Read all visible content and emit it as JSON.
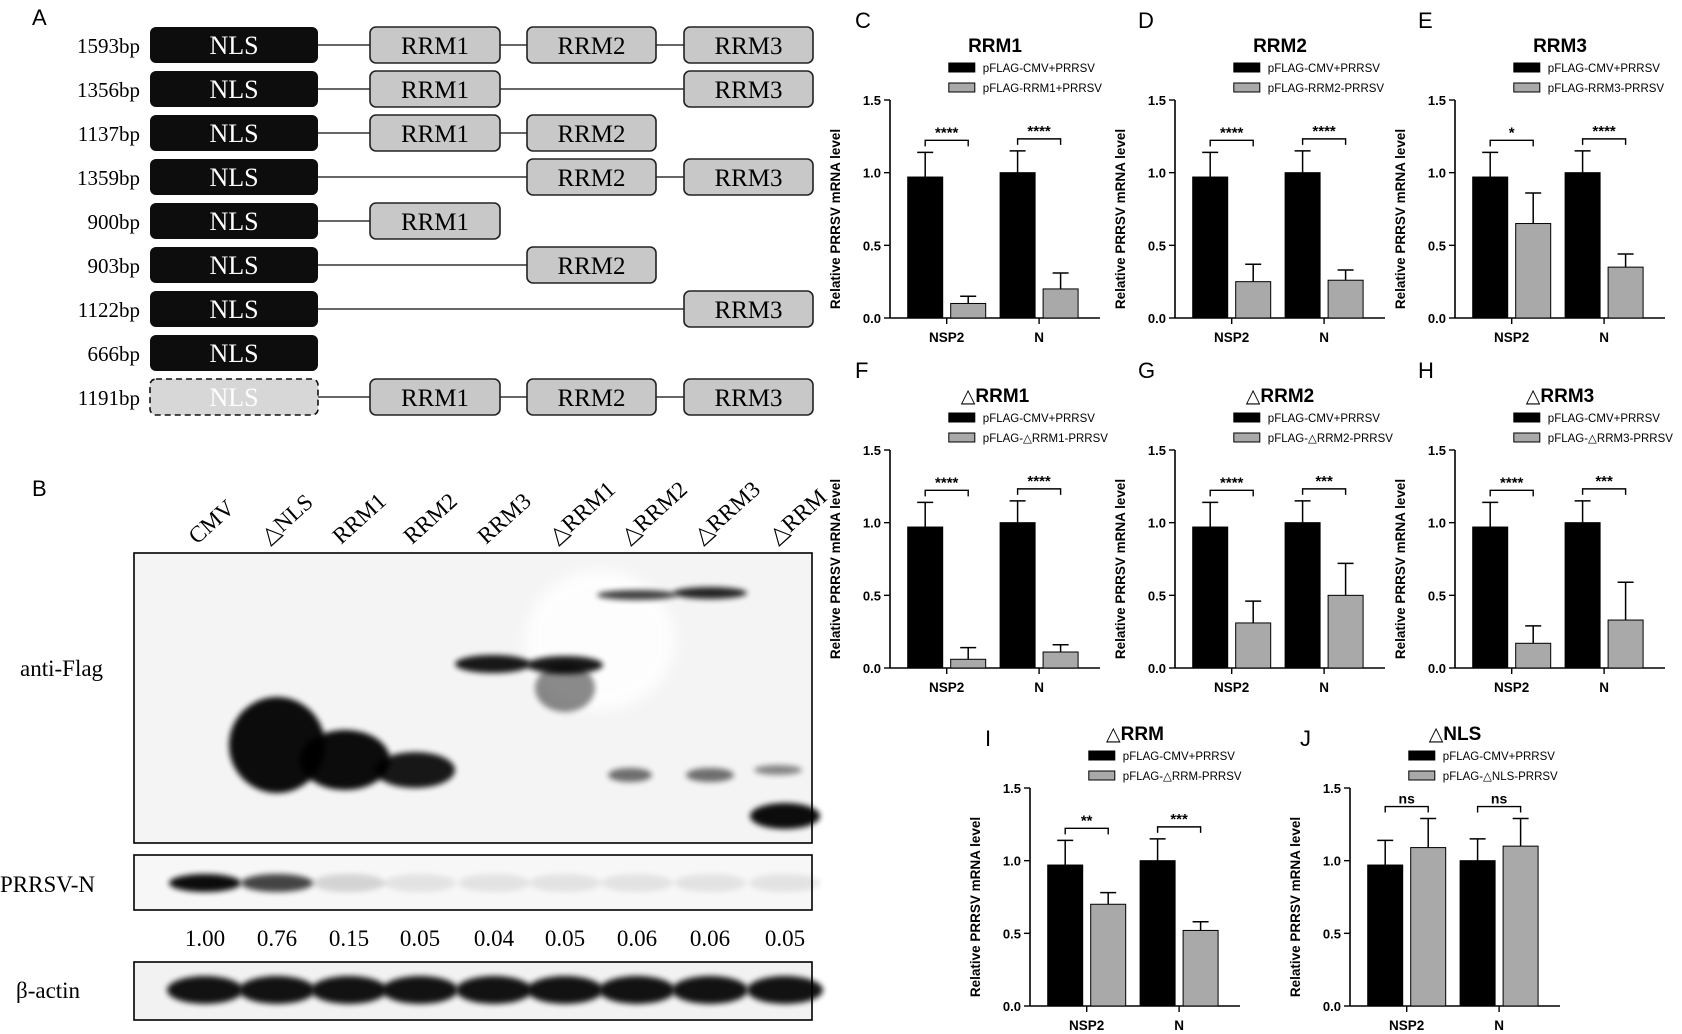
{
  "panels": {
    "A": {
      "letter": "A",
      "constructs": [
        {
          "length": "1593bp",
          "nls": "NLS",
          "nls_deleted": false,
          "domains": [
            "RRM1",
            "RRM2",
            "RRM3"
          ]
        },
        {
          "length": "1356bp",
          "nls": "NLS",
          "nls_deleted": false,
          "domains": [
            "RRM1",
            "RRM3"
          ]
        },
        {
          "length": "1137bp",
          "nls": "NLS",
          "nls_deleted": false,
          "domains": [
            "RRM1",
            "RRM2"
          ]
        },
        {
          "length": "1359bp",
          "nls": "NLS",
          "nls_deleted": false,
          "domains": [
            "RRM2",
            "RRM3"
          ]
        },
        {
          "length": "900bp",
          "nls": "NLS",
          "nls_deleted": false,
          "domains": [
            "RRM1"
          ]
        },
        {
          "length": "903bp",
          "nls": "NLS",
          "nls_deleted": false,
          "domains": [
            "RRM2"
          ]
        },
        {
          "length": "1122bp",
          "nls": "NLS",
          "nls_deleted": false,
          "domains": [
            "RRM3"
          ]
        },
        {
          "length": "666bp",
          "nls": "NLS",
          "nls_deleted": false,
          "domains": []
        },
        {
          "length": "1191bp",
          "nls": "NLS",
          "nls_deleted": true,
          "domains": [
            "RRM1",
            "RRM2",
            "RRM3"
          ]
        }
      ]
    },
    "B": {
      "letter": "B",
      "lanes": [
        "CMV",
        "△NLS",
        "RRM1",
        "RRM2",
        "RRM3",
        "△RRM1",
        "△RRM2",
        "△RRM3",
        "△RRM"
      ],
      "blot_labels": [
        "anti-Flag",
        "PRRSV-N",
        "β-actin"
      ],
      "quantification": [
        "1.00",
        "0.76",
        "0.15",
        "0.05",
        "0.04",
        "0.05",
        "0.06",
        "0.06",
        "0.05"
      ],
      "n_intensity": [
        1.0,
        0.76,
        0.15,
        0.05,
        0.04,
        0.05,
        0.06,
        0.06,
        0.05
      ]
    }
  },
  "colors": {
    "control": "#000000",
    "treatment": "#a9a9a9",
    "domain_box": "#c8c8c8",
    "nls_box": "#0d0d0d"
  },
  "chart_data": [
    {
      "panel": "C",
      "type": "bar",
      "title": "RRM1",
      "ylabel": "Relative PRRSV mRNA level",
      "xlabel": "",
      "categories": [
        "NSP2",
        "N"
      ],
      "ylim": [
        0,
        1.5
      ],
      "yticks": [
        "0.0",
        "0.5",
        "1.0",
        "1.5"
      ],
      "series": [
        {
          "name": "pFLAG-CMV+PRRSV",
          "values": [
            0.97,
            1.0
          ],
          "errors": [
            0.17,
            0.15
          ]
        },
        {
          "name": "pFLAG-RRM1+PRRSV",
          "values": [
            0.1,
            0.2
          ],
          "errors": [
            0.05,
            0.11
          ]
        }
      ],
      "significance": [
        "****",
        "****"
      ],
      "legend": "top"
    },
    {
      "panel": "D",
      "type": "bar",
      "title": "RRM2",
      "ylabel": "Relative PRRSV mRNA level",
      "xlabel": "",
      "categories": [
        "NSP2",
        "N"
      ],
      "ylim": [
        0,
        1.5
      ],
      "yticks": [
        "0.0",
        "0.5",
        "1.0",
        "1.5"
      ],
      "series": [
        {
          "name": "pFLAG-CMV+PRRSV",
          "values": [
            0.97,
            1.0
          ],
          "errors": [
            0.17,
            0.15
          ]
        },
        {
          "name": "pFLAG-RRM2-PRRSV",
          "values": [
            0.25,
            0.26
          ],
          "errors": [
            0.12,
            0.07
          ]
        }
      ],
      "significance": [
        "****",
        "****"
      ],
      "legend": "top"
    },
    {
      "panel": "E",
      "type": "bar",
      "title": "RRM3",
      "ylabel": "Relative PRRSV mRNA level",
      "xlabel": "",
      "categories": [
        "NSP2",
        "N"
      ],
      "ylim": [
        0,
        1.5
      ],
      "yticks": [
        "0.0",
        "0.5",
        "1.0",
        "1.5"
      ],
      "series": [
        {
          "name": "pFLAG-CMV+PRRSV",
          "values": [
            0.97,
            1.0
          ],
          "errors": [
            0.17,
            0.15
          ]
        },
        {
          "name": "pFLAG-RRM3-PRRSV",
          "values": [
            0.65,
            0.35
          ],
          "errors": [
            0.21,
            0.09
          ]
        }
      ],
      "significance": [
        "*",
        "****"
      ],
      "legend": "top"
    },
    {
      "panel": "F",
      "type": "bar",
      "title": "△RRM1",
      "ylabel": "Relative PRRSV mRNA level",
      "xlabel": "",
      "categories": [
        "NSP2",
        "N"
      ],
      "ylim": [
        0,
        1.5
      ],
      "yticks": [
        "0.0",
        "0.5",
        "1.0",
        "1.5"
      ],
      "series": [
        {
          "name": "pFLAG-CMV+PRRSV",
          "values": [
            0.97,
            1.0
          ],
          "errors": [
            0.17,
            0.15
          ]
        },
        {
          "name": "pFLAG-△RRM1-PRRSV",
          "values": [
            0.06,
            0.11
          ],
          "errors": [
            0.08,
            0.05
          ]
        }
      ],
      "significance": [
        "****",
        "****"
      ],
      "legend": "top"
    },
    {
      "panel": "G",
      "type": "bar",
      "title": "△RRM2",
      "ylabel": "Relative PRRSV mRNA level",
      "xlabel": "",
      "categories": [
        "NSP2",
        "N"
      ],
      "ylim": [
        0,
        1.5
      ],
      "yticks": [
        "0.0",
        "0.5",
        "1.0",
        "1.5"
      ],
      "series": [
        {
          "name": "pFLAG-CMV+PRRSV",
          "values": [
            0.97,
            1.0
          ],
          "errors": [
            0.17,
            0.15
          ]
        },
        {
          "name": "pFLAG-△RRM2-PRRSV",
          "values": [
            0.31,
            0.5
          ],
          "errors": [
            0.15,
            0.22
          ]
        }
      ],
      "significance": [
        "****",
        "***"
      ],
      "legend": "top"
    },
    {
      "panel": "H",
      "type": "bar",
      "title": "△RRM3",
      "ylabel": "Relative PRRSV mRNA level",
      "xlabel": "",
      "categories": [
        "NSP2",
        "N"
      ],
      "ylim": [
        0,
        1.5
      ],
      "yticks": [
        "0.0",
        "0.5",
        "1.0",
        "1.5"
      ],
      "series": [
        {
          "name": "pFLAG-CMV+PRRSV",
          "values": [
            0.97,
            1.0
          ],
          "errors": [
            0.17,
            0.15
          ]
        },
        {
          "name": "pFLAG-△RRM3-PRRSV",
          "values": [
            0.17,
            0.33
          ],
          "errors": [
            0.12,
            0.26
          ]
        }
      ],
      "significance": [
        "****",
        "***"
      ],
      "legend": "top"
    },
    {
      "panel": "I",
      "type": "bar",
      "title": "△RRM",
      "ylabel": "Relative PRRSV mRNA level",
      "xlabel": "",
      "categories": [
        "NSP2",
        "N"
      ],
      "ylim": [
        0,
        1.5
      ],
      "yticks": [
        "0.0",
        "0.5",
        "1.0",
        "1.5"
      ],
      "series": [
        {
          "name": "pFLAG-CMV+PRRSV",
          "values": [
            0.97,
            1.0
          ],
          "errors": [
            0.17,
            0.15
          ]
        },
        {
          "name": "pFLAG-△RRM-PRRSV",
          "values": [
            0.7,
            0.52
          ],
          "errors": [
            0.08,
            0.06
          ]
        }
      ],
      "significance": [
        "**",
        "***"
      ],
      "legend": "top"
    },
    {
      "panel": "J",
      "type": "bar",
      "title": "△NLS",
      "ylabel": "Relative PRRSV mRNA level",
      "xlabel": "",
      "categories": [
        "NSP2",
        "N"
      ],
      "ylim": [
        0,
        1.5
      ],
      "yticks": [
        "0.0",
        "0.5",
        "1.0",
        "1.5"
      ],
      "series": [
        {
          "name": "pFLAG-CMV+PRRSV",
          "values": [
            0.97,
            1.0
          ],
          "errors": [
            0.17,
            0.15
          ]
        },
        {
          "name": "pFLAG-△NLS-PRRSV",
          "values": [
            1.09,
            1.1
          ],
          "errors": [
            0.2,
            0.19
          ]
        }
      ],
      "significance": [
        "ns",
        "ns"
      ],
      "legend": "top"
    }
  ]
}
